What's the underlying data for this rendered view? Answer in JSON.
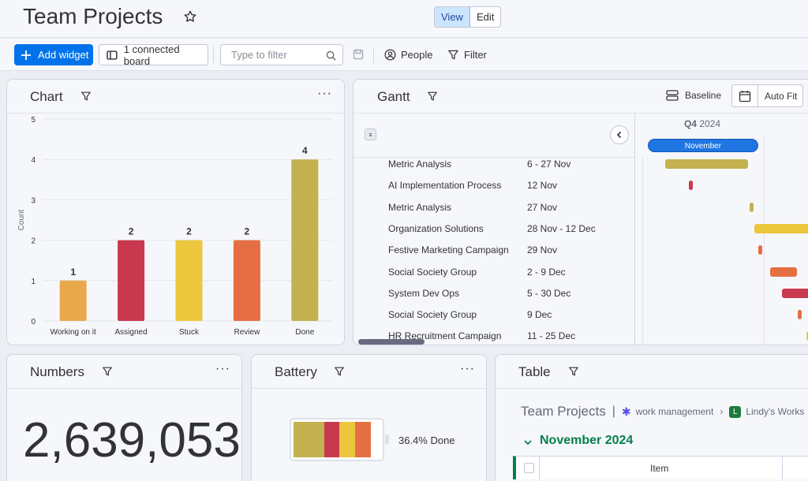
{
  "header": {
    "title": "Team Projects",
    "view_label": "View",
    "edit_label": "Edit"
  },
  "toolbar": {
    "add_widget": "Add widget",
    "connected_board": "1 connected board",
    "filter_placeholder": "Type to filter",
    "people": "People",
    "filter": "Filter"
  },
  "chart_widget": {
    "title": "Chart",
    "ylabel": "Count"
  },
  "chart_data": {
    "type": "bar",
    "title": "",
    "xlabel": "",
    "ylabel": "Count",
    "categories": [
      "Working on it",
      "Assigned",
      "Stuck",
      "Review",
      "Done"
    ],
    "values": [
      1,
      2,
      2,
      2,
      4
    ],
    "colors": [
      "#e8a94d",
      "#c8394f",
      "#ecc63c",
      "#e56f42",
      "#c3b24f"
    ],
    "ylim": [
      0,
      5
    ],
    "yticks": [
      0,
      1,
      2,
      3,
      4,
      5
    ],
    "data_labels": [
      "1",
      "2",
      "2",
      "2",
      "4"
    ],
    "grid": true
  },
  "gantt": {
    "title": "Gantt",
    "baseline": "Baseline",
    "auto_fit": "Auto Fit",
    "quarter": "Q4",
    "year": "2024",
    "month": "November",
    "rows": [
      {
        "name": "Metric Analysis",
        "dates": "6 - 27 Nov",
        "color": "#c3b24f"
      },
      {
        "name": "AI Implementation Process",
        "dates": "12 Nov",
        "color": "#c8394f"
      },
      {
        "name": "Metric Analysis",
        "dates": "27 Nov",
        "color": "#c3b24f"
      },
      {
        "name": "Organization Solutions",
        "dates": "28 Nov - 12 Dec",
        "color": "#ecc63c"
      },
      {
        "name": "Festive Marketing Campaign",
        "dates": "29 Nov",
        "color": "#e56f42"
      },
      {
        "name": "Social Society Group",
        "dates": "2 - 9 Dec",
        "color": "#e56f42"
      },
      {
        "name": "System Dev Ops",
        "dates": "5 - 30 Dec",
        "color": "#c8394f"
      },
      {
        "name": "Social Society Group",
        "dates": "9 Dec",
        "color": "#e56f42"
      },
      {
        "name": "HR Recruitment Campaign",
        "dates": "11 - 25 Dec",
        "color": "#ecc63c"
      }
    ]
  },
  "numbers": {
    "title": "Numbers",
    "value": "2,639,053"
  },
  "battery": {
    "title": "Battery",
    "label": "36.4% Done",
    "segments": [
      {
        "color": "#c3b24f",
        "share": 0.35
      },
      {
        "color": "#c8394f",
        "share": 0.18
      },
      {
        "color": "#ecc63c",
        "share": 0.18
      },
      {
        "color": "#e56f42",
        "share": 0.18
      }
    ]
  },
  "table_widget": {
    "title": "Table",
    "board": "Team Projects",
    "workspace": "work management",
    "workspace_item": "Lindy's Works",
    "group": "November 2024",
    "column_item": "Item",
    "group_color": "#037f4c"
  }
}
